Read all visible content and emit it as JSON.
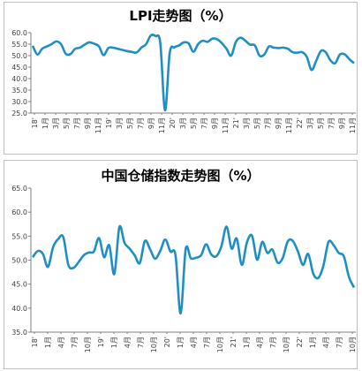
{
  "chart_data": [
    {
      "type": "line",
      "title": "LPI走势图（%）",
      "xlabel": "",
      "ylabel": "",
      "ylim": [
        25,
        60
      ],
      "yticks": [
        "25.0",
        "30.0",
        "35.0",
        "40.0",
        "45.0",
        "50.0",
        "55.0",
        "60.0"
      ],
      "xtick_labels": [
        "18'",
        "1月",
        "3月",
        "5月",
        "7月",
        "9月",
        "11月",
        "19'",
        "3月",
        "5月",
        "7月",
        "9月",
        "11月",
        "20'",
        "3月",
        "5月",
        "7月",
        "9月",
        "11月",
        "21'",
        "3月",
        "5月",
        "7月",
        "9月",
        "11月",
        "22'",
        "3月",
        "5月",
        "7月",
        "9月",
        "11月"
      ],
      "grid": false,
      "line_color": "#1f8fc3",
      "series": [
        {
          "values": [
            54.3,
            50.5,
            53.0,
            54.0,
            55.0,
            56.2,
            55.0,
            50.8,
            50.7,
            53.0,
            53.5,
            54.8,
            55.8,
            55.2,
            54.1,
            50.2,
            53.3,
            53.5,
            53.0,
            52.5,
            52.0,
            51.6,
            51.4,
            53.5,
            55.0,
            58.8,
            58.5,
            55.5,
            26.2,
            51.2,
            53.6,
            54.5,
            55.8,
            55.3,
            51.7,
            55.0,
            56.5,
            56.0,
            57.4,
            57.2,
            55.5,
            53.0,
            50.0,
            56.0,
            57.8,
            56.5,
            54.8,
            54.5,
            50.0,
            50.5,
            54.0,
            53.5,
            53.3,
            53.5,
            53.0,
            51.5,
            51.3,
            51.5,
            49.5,
            43.8,
            47.8,
            52.1,
            51.5,
            48.0,
            46.7,
            50.5,
            50.6,
            48.5,
            46.7
          ]
        }
      ]
    },
    {
      "type": "line",
      "title": "中国仓储指数走势图（%）",
      "xlabel": "",
      "ylabel": "",
      "ylim": [
        35,
        65
      ],
      "yticks": [
        "35.0",
        "40.0",
        "45.0",
        "50.0",
        "55.0",
        "60.0",
        "65.0"
      ],
      "xtick_labels": [
        "18'",
        "1月",
        "4月",
        "7月",
        "10月",
        "19'",
        "1月",
        "4月",
        "7月",
        "10月",
        "20'",
        "1月",
        "4月",
        "7月",
        "10月",
        "21'",
        "1月",
        "4月",
        "7月",
        "10月",
        "22'",
        "1月",
        "4月",
        "7月",
        "10月"
      ],
      "grid": false,
      "line_color": "#1f8fc3",
      "series": [
        {
          "values": [
            50.6,
            51.9,
            51.3,
            48.6,
            52.7,
            54.4,
            54.8,
            49.0,
            48.4,
            49.6,
            51.0,
            51.6,
            51.8,
            54.6,
            50.6,
            53.1,
            47.1,
            56.9,
            53.6,
            52.4,
            51.0,
            49.4,
            54.0,
            52.3,
            50.3,
            51.9,
            54.3,
            51.8,
            51.0,
            38.9,
            52.3,
            50.4,
            50.5,
            51.0,
            53.3,
            51.2,
            50.8,
            52.9,
            57.0,
            52.4,
            54.5,
            49.0,
            53.7,
            55.1,
            50.1,
            53.8,
            51.5,
            52.2,
            49.5,
            50.4,
            53.9,
            54.0,
            51.8,
            49.0,
            51.3,
            47.2,
            46.3,
            48.9,
            53.8,
            53.1,
            51.5,
            50.8,
            46.5,
            44.3
          ]
        }
      ]
    }
  ]
}
